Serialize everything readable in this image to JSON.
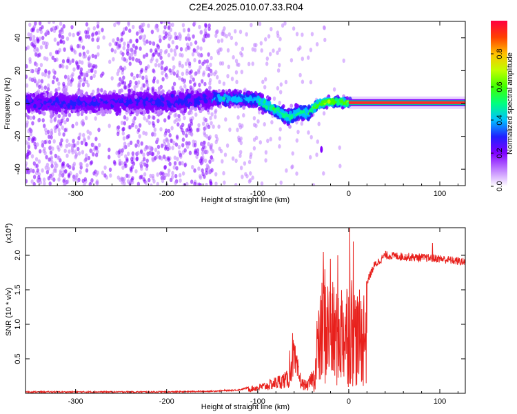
{
  "title": "C2E4.2025.010.07.33.R04",
  "chart_data": [
    {
      "type": "heatmap",
      "xlabel": "Height of straight line (km)",
      "ylabel": "Frequency (Hz)",
      "xlim": [
        -355,
        128
      ],
      "ylim": [
        -50,
        50
      ],
      "xticks": [
        -300,
        -200,
        -100,
        0,
        100
      ],
      "yticks": [
        -40,
        -20,
        0,
        20,
        40
      ],
      "colorbar": {
        "label": "Normalized spectral amplitude",
        "range": [
          0,
          1
        ],
        "ticks": [
          "0.0",
          "0.2",
          "0.4",
          "0.6",
          "0.8"
        ],
        "tick_values": [
          0,
          0.2,
          0.4,
          0.6,
          0.8
        ],
        "colors": [
          "#ffffff",
          "#c080ff",
          "#8000ff",
          "#2020ff",
          "#00c0ff",
          "#00ff80",
          "#40ff00",
          "#c0ff00",
          "#ffc000",
          "#ff4000",
          "#ff0040"
        ]
      },
      "features": {
        "center_frequency_curve": [
          {
            "x": -355,
            "y": 0.5
          },
          {
            "x": -300,
            "y": 0.5
          },
          {
            "x": -200,
            "y": 1
          },
          {
            "x": -150,
            "y": 3
          },
          {
            "x": -120,
            "y": 3
          },
          {
            "x": -100,
            "y": 2
          },
          {
            "x": -90,
            "y": -1
          },
          {
            "x": -80,
            "y": -4
          },
          {
            "x": -65,
            "y": -9
          },
          {
            "x": -55,
            "y": -5
          },
          {
            "x": -45,
            "y": -6
          },
          {
            "x": -35,
            "y": -1
          },
          {
            "x": -25,
            "y": 1
          },
          {
            "x": -10,
            "y": 1
          },
          {
            "x": 0,
            "y": 0.5
          },
          {
            "x": 128,
            "y": 0.5
          }
        ],
        "constant_line_y": 0.5,
        "constant_line_from_x": 0,
        "outlier_point": {
          "x": -30,
          "y": -28
        }
      }
    },
    {
      "type": "line",
      "xlabel": "Height of straight line (km)",
      "ylabel": "SNR (10 * v/v)",
      "y_multiplier": "(x10",
      "y_multiplier_exp": "4",
      "y_multiplier_close": ")",
      "xlim": [
        -355,
        128
      ],
      "ylim": [
        0,
        2.4
      ],
      "xticks": [
        -300,
        -200,
        -100,
        0,
        100
      ],
      "yticks": [
        0.5,
        1.0,
        1.5,
        2.0
      ],
      "ytick_labels": [
        "0.5",
        "1.0",
        "1.5",
        "2.0"
      ],
      "series": [
        {
          "color": "#e8201c",
          "envelope": [
            {
              "x": -355,
              "y": 0.02
            },
            {
              "x": -200,
              "y": 0.02
            },
            {
              "x": -150,
              "y": 0.03
            },
            {
              "x": -120,
              "y": 0.05
            },
            {
              "x": -105,
              "y": 0.1
            },
            {
              "x": -90,
              "y": 0.15
            },
            {
              "x": -75,
              "y": 0.25
            },
            {
              "x": -65,
              "y": 0.3
            },
            {
              "x": -62,
              "y": 0.8
            },
            {
              "x": -58,
              "y": 0.55
            },
            {
              "x": -52,
              "y": 0.2
            },
            {
              "x": -45,
              "y": 0.15
            },
            {
              "x": -38,
              "y": 0.4
            },
            {
              "x": -33,
              "y": 1.2
            },
            {
              "x": -27,
              "y": 1.85
            },
            {
              "x": -22,
              "y": 1.6
            },
            {
              "x": -15,
              "y": 1.5
            },
            {
              "x": -8,
              "y": 1.6
            },
            {
              "x": -2,
              "y": 1.65
            },
            {
              "x": 3,
              "y": 1.7
            },
            {
              "x": 10,
              "y": 1.4
            },
            {
              "x": 18,
              "y": 1.55
            },
            {
              "x": 28,
              "y": 1.85
            },
            {
              "x": 40,
              "y": 2.0
            },
            {
              "x": 60,
              "y": 1.98
            },
            {
              "x": 100,
              "y": 1.95
            },
            {
              "x": 128,
              "y": 1.9
            }
          ],
          "spikes": [
            {
              "x": -65,
              "y": 0.62
            },
            {
              "x": -35,
              "y": 1.05
            },
            {
              "x": -28,
              "y": 2.05
            },
            {
              "x": -20,
              "y": 1.95
            },
            {
              "x": -12,
              "y": 2.0
            },
            {
              "x": 1,
              "y": 2.45
            },
            {
              "x": 5,
              "y": 2.2
            },
            {
              "x": 92,
              "y": 2.18
            }
          ]
        }
      ]
    }
  ]
}
